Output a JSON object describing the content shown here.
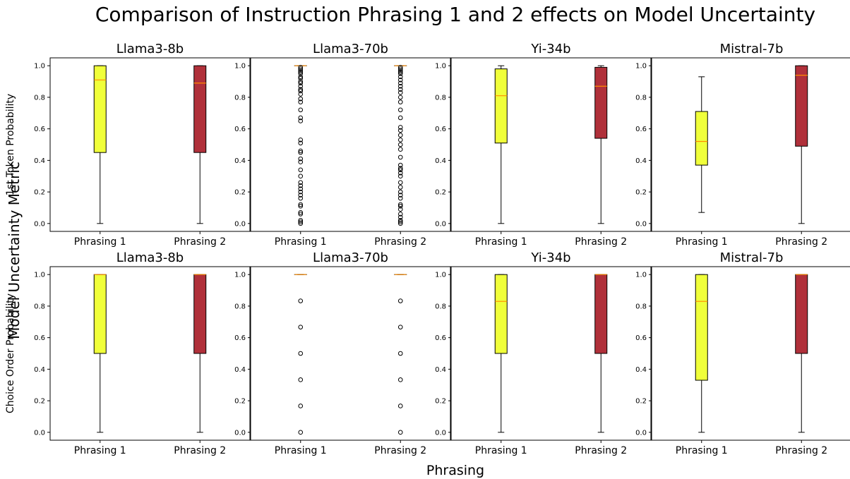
{
  "title": "Comparison of Instruction Phrasing 1 and 2 effects on Model Uncertainty",
  "supxlabel": "Phrasing",
  "supylabel": "Model Uncertainty Metric",
  "colors": {
    "phrasing1": "#f0ff3a",
    "phrasing2": "#b0303a",
    "median": "#ff8c00",
    "edge": "#000000"
  },
  "chart_data": [
    {
      "type": "box",
      "title": "Llama3-8b",
      "ylabel": "1st Token Probability",
      "categories": [
        "Phrasing 1",
        "Phrasing 2"
      ],
      "ylim": [
        -0.05,
        1.05
      ],
      "yticks": [
        0.0,
        0.2,
        0.4,
        0.6,
        0.8,
        1.0
      ],
      "boxes": [
        {
          "min": 0.0,
          "q1": 0.45,
          "median": 0.91,
          "q3": 1.0,
          "max": 1.0,
          "outliers": []
        },
        {
          "min": 0.0,
          "q1": 0.45,
          "median": 0.89,
          "q3": 1.0,
          "max": 1.0,
          "outliers": []
        }
      ]
    },
    {
      "type": "box",
      "title": "Llama3-70b",
      "ylabel": "",
      "categories": [
        "Phrasing 1",
        "Phrasing 2"
      ],
      "ylim": [
        -0.05,
        1.05
      ],
      "yticks": [
        0.0,
        0.2,
        0.4,
        0.6,
        0.8,
        1.0
      ],
      "boxes": [
        {
          "min": 1.0,
          "q1": 1.0,
          "median": 1.0,
          "q3": 1.0,
          "max": 1.0,
          "outliers": [
            0.0,
            0.01,
            0.02,
            0.06,
            0.07,
            0.11,
            0.12,
            0.16,
            0.18,
            0.2,
            0.22,
            0.24,
            0.26,
            0.3,
            0.34,
            0.39,
            0.41,
            0.45,
            0.46,
            0.51,
            0.53,
            0.65,
            0.67,
            0.72,
            0.77,
            0.79,
            0.82,
            0.84,
            0.85,
            0.87,
            0.89,
            0.9,
            0.92,
            0.93,
            0.95,
            0.96,
            0.97,
            0.98,
            0.99
          ]
        },
        {
          "min": 1.0,
          "q1": 1.0,
          "median": 1.0,
          "q3": 1.0,
          "max": 1.0,
          "outliers": [
            0.0,
            0.01,
            0.02,
            0.04,
            0.06,
            0.09,
            0.11,
            0.12,
            0.16,
            0.18,
            0.2,
            0.23,
            0.26,
            0.3,
            0.32,
            0.34,
            0.35,
            0.37,
            0.42,
            0.47,
            0.5,
            0.53,
            0.56,
            0.59,
            0.61,
            0.67,
            0.72,
            0.77,
            0.8,
            0.83,
            0.85,
            0.87,
            0.89,
            0.91,
            0.93,
            0.95,
            0.96,
            0.97,
            0.98,
            0.99
          ]
        }
      ]
    },
    {
      "type": "box",
      "title": "Yi-34b",
      "ylabel": "",
      "categories": [
        "Phrasing 1",
        "Phrasing 2"
      ],
      "ylim": [
        -0.05,
        1.05
      ],
      "yticks": [
        0.0,
        0.2,
        0.4,
        0.6,
        0.8,
        1.0
      ],
      "boxes": [
        {
          "min": 0.0,
          "q1": 0.51,
          "median": 0.81,
          "q3": 0.98,
          "max": 1.0,
          "outliers": []
        },
        {
          "min": 0.0,
          "q1": 0.54,
          "median": 0.87,
          "q3": 0.99,
          "max": 1.0,
          "outliers": []
        }
      ]
    },
    {
      "type": "box",
      "title": "Mistral-7b",
      "ylabel": "",
      "categories": [
        "Phrasing 1",
        "Phrasing 2"
      ],
      "ylim": [
        -0.05,
        1.05
      ],
      "yticks": [
        0.0,
        0.2,
        0.4,
        0.6,
        0.8,
        1.0
      ],
      "boxes": [
        {
          "min": 0.07,
          "q1": 0.37,
          "median": 0.52,
          "q3": 0.71,
          "max": 0.93,
          "outliers": []
        },
        {
          "min": 0.0,
          "q1": 0.49,
          "median": 0.94,
          "q3": 1.0,
          "max": 1.0,
          "outliers": []
        }
      ]
    },
    {
      "type": "box",
      "title": "Llama3-8b",
      "ylabel": "Choice Order Probability",
      "categories": [
        "Phrasing 1",
        "Phrasing 2"
      ],
      "ylim": [
        -0.05,
        1.05
      ],
      "yticks": [
        0.0,
        0.2,
        0.4,
        0.6,
        0.8,
        1.0
      ],
      "boxes": [
        {
          "min": 0.0,
          "q1": 0.5,
          "median": 1.0,
          "q3": 1.0,
          "max": 1.0,
          "outliers": []
        },
        {
          "min": 0.0,
          "q1": 0.5,
          "median": 1.0,
          "q3": 1.0,
          "max": 1.0,
          "outliers": []
        }
      ]
    },
    {
      "type": "box",
      "title": "Llama3-70b",
      "ylabel": "",
      "categories": [
        "Phrasing 1",
        "Phrasing 2"
      ],
      "ylim": [
        -0.05,
        1.05
      ],
      "yticks": [
        0.0,
        0.2,
        0.4,
        0.6,
        0.8,
        1.0
      ],
      "boxes": [
        {
          "min": 1.0,
          "q1": 1.0,
          "median": 1.0,
          "q3": 1.0,
          "max": 1.0,
          "outliers": [
            0.0,
            0.167,
            0.333,
            0.5,
            0.667,
            0.833
          ]
        },
        {
          "min": 1.0,
          "q1": 1.0,
          "median": 1.0,
          "q3": 1.0,
          "max": 1.0,
          "outliers": [
            0.0,
            0.167,
            0.333,
            0.5,
            0.667,
            0.833
          ]
        }
      ]
    },
    {
      "type": "box",
      "title": "Yi-34b",
      "ylabel": "",
      "categories": [
        "Phrasing 1",
        "Phrasing 2"
      ],
      "ylim": [
        -0.05,
        1.05
      ],
      "yticks": [
        0.0,
        0.2,
        0.4,
        0.6,
        0.8,
        1.0
      ],
      "boxes": [
        {
          "min": 0.0,
          "q1": 0.5,
          "median": 0.83,
          "q3": 1.0,
          "max": 1.0,
          "outliers": []
        },
        {
          "min": 0.0,
          "q1": 0.5,
          "median": 1.0,
          "q3": 1.0,
          "max": 1.0,
          "outliers": []
        }
      ]
    },
    {
      "type": "box",
      "title": "Mistral-7b",
      "ylabel": "",
      "categories": [
        "Phrasing 1",
        "Phrasing 2"
      ],
      "ylim": [
        -0.05,
        1.05
      ],
      "yticks": [
        0.0,
        0.2,
        0.4,
        0.6,
        0.8,
        1.0
      ],
      "boxes": [
        {
          "min": 0.0,
          "q1": 0.33,
          "median": 0.83,
          "q3": 1.0,
          "max": 1.0,
          "outliers": []
        },
        {
          "min": 0.0,
          "q1": 0.5,
          "median": 1.0,
          "q3": 1.0,
          "max": 1.0,
          "outliers": []
        }
      ]
    }
  ]
}
